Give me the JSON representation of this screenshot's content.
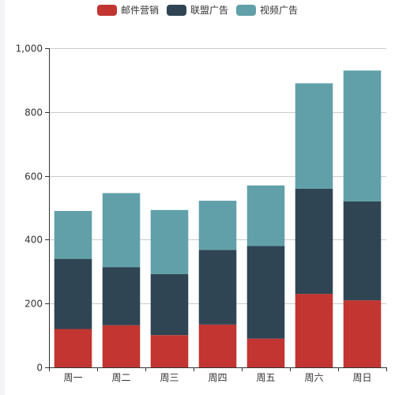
{
  "chart_data": {
    "type": "bar",
    "stacked": true,
    "title": "",
    "xlabel": "",
    "ylabel": "",
    "categories": [
      "周一",
      "周二",
      "周三",
      "周四",
      "周五",
      "周六",
      "周日"
    ],
    "series": [
      {
        "name": "邮件营销",
        "color": "#c23531",
        "values": [
          120,
          132,
          101,
          134,
          90,
          230,
          210
        ]
      },
      {
        "name": "联盟广告",
        "color": "#2f4554",
        "values": [
          220,
          182,
          191,
          234,
          290,
          330,
          310
        ]
      },
      {
        "name": "视频广告",
        "color": "#61a0a8",
        "values": [
          150,
          232,
          201,
          154,
          190,
          330,
          410
        ]
      }
    ],
    "ylim": [
      0,
      1000
    ],
    "yticks": [
      "0",
      "200",
      "400",
      "600",
      "800",
      "1,000"
    ],
    "ytick_values": [
      0,
      200,
      400,
      600,
      800,
      1000
    ],
    "grid": "horizontal",
    "legend_position": "top-center"
  }
}
